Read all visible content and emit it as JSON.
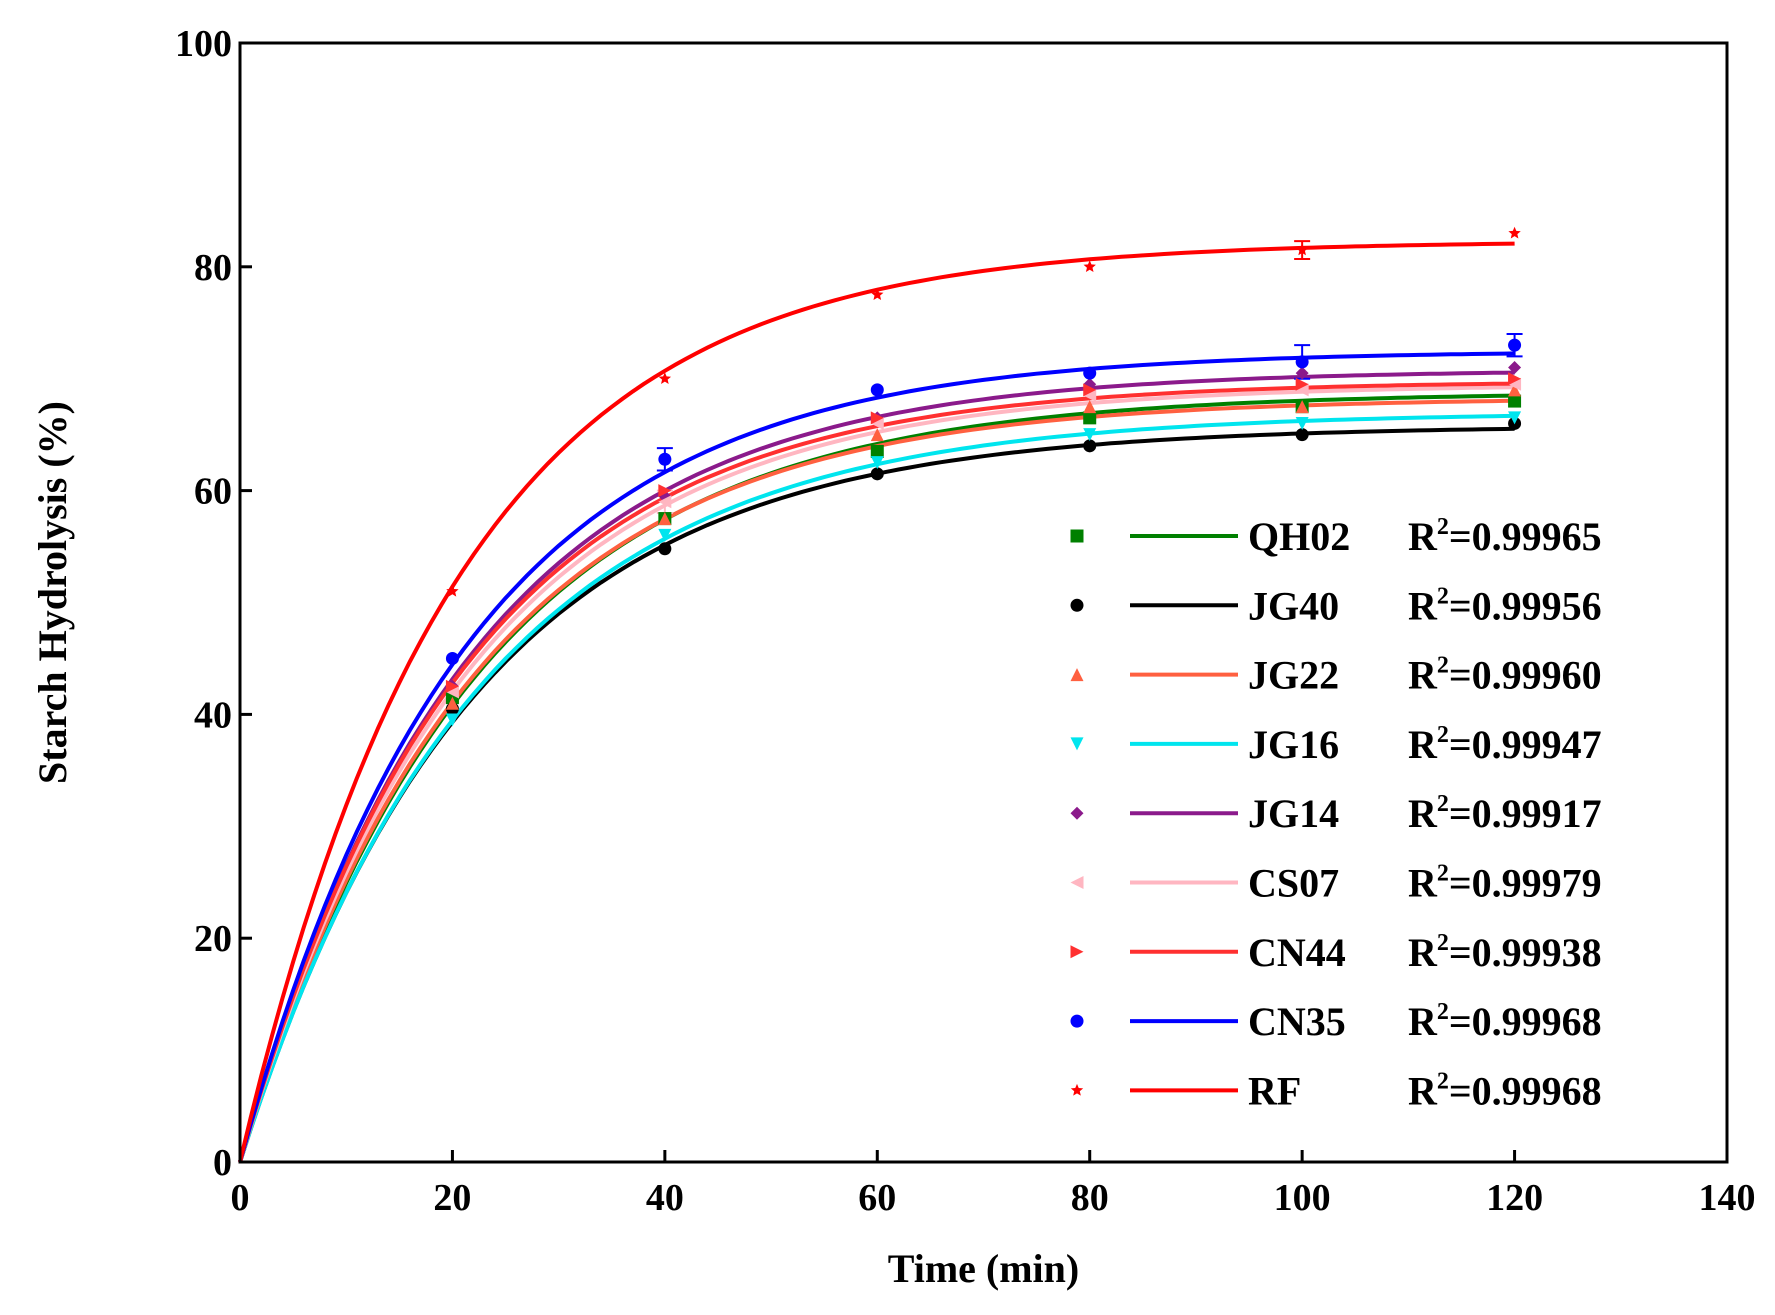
{
  "chart_data": {
    "type": "line",
    "title": "",
    "xlabel": "Time (min)",
    "ylabel": "Starch Hydrolysis (%)",
    "xlim": [
      0,
      140
    ],
    "ylim": [
      0,
      100
    ],
    "x_ticks": [
      0,
      20,
      40,
      60,
      80,
      100,
      120,
      140
    ],
    "y_ticks": [
      0,
      20,
      40,
      60,
      80,
      100
    ],
    "grid": false,
    "legend_position": "lower-right",
    "x": [
      0,
      20,
      40,
      60,
      80,
      100,
      120
    ],
    "series": [
      {
        "name": "QH02",
        "r2_label": "=0.99965",
        "color": "#008000",
        "marker": "square",
        "values": [
          0,
          41.5,
          57.5,
          63.5,
          66.5,
          67.5,
          68.0
        ],
        "fit_curve": {
          "plateau": 68.8,
          "k": 0.045
        }
      },
      {
        "name": "JG40",
        "r2_label": "=0.99956",
        "color": "#000000",
        "marker": "circle",
        "values": [
          0,
          40.5,
          54.8,
          61.5,
          64.0,
          65.0,
          66.0
        ],
        "fit_curve": {
          "plateau": 65.8,
          "k": 0.0455
        }
      },
      {
        "name": "JG22",
        "r2_label": "=0.99960",
        "color": "#ff6040",
        "marker": "triangle-up",
        "values": [
          0,
          41.0,
          57.5,
          65.0,
          67.5,
          67.5,
          69.0
        ],
        "fit_curve": {
          "plateau": 68.3,
          "k": 0.046
        }
      },
      {
        "name": "JG16",
        "r2_label": "=0.99947",
        "color": "#00e5ee",
        "marker": "triangle-down",
        "values": [
          0,
          39.5,
          56.0,
          62.5,
          65.0,
          66.0,
          66.5
        ],
        "fit_curve": {
          "plateau": 67.0,
          "k": 0.0445
        }
      },
      {
        "name": "JG14",
        "r2_label": "=0.99917",
        "color": "#8b1a8b",
        "marker": "diamond",
        "values": [
          0,
          42.5,
          59.5,
          66.5,
          69.5,
          70.5,
          71.0
        ],
        "fit_curve": {
          "plateau": 70.8,
          "k": 0.047
        }
      },
      {
        "name": "CS07",
        "r2_label": "=0.99979",
        "color": "#ffb6c1",
        "marker": "triangle-left",
        "values": [
          0,
          42.0,
          59.0,
          66.0,
          68.5,
          69.0,
          69.5
        ],
        "fit_curve": {
          "plateau": 69.5,
          "k": 0.0465
        }
      },
      {
        "name": "CN44",
        "r2_label": "=0.99938",
        "color": "#ff3030",
        "marker": "triangle-right",
        "values": [
          0,
          42.5,
          60.0,
          66.5,
          69.0,
          69.5,
          70.0
        ],
        "fit_curve": {
          "plateau": 69.8,
          "k": 0.0475
        }
      },
      {
        "name": "CN35",
        "r2_label": "=0.99968",
        "color": "#0000ff",
        "marker": "circle",
        "values": [
          0,
          45.0,
          62.8,
          69.0,
          70.5,
          71.5,
          73.0
        ],
        "fit_curve": {
          "plateau": 72.5,
          "k": 0.0475
        }
      },
      {
        "name": "RF",
        "r2_label": "=0.99968",
        "color": "#ff0000",
        "marker": "star",
        "values": [
          0,
          51.0,
          70.0,
          77.5,
          80.0,
          81.5,
          83.0
        ],
        "fit_curve": {
          "plateau": 82.3,
          "k": 0.049
        }
      }
    ],
    "error_bars": [
      {
        "series": "CN35",
        "x": 40,
        "err": 1.0
      },
      {
        "series": "CN35",
        "x": 100,
        "err": 1.5
      },
      {
        "series": "CN35",
        "x": 120,
        "err": 1.0
      },
      {
        "series": "RF",
        "x": 100,
        "err": 0.8
      },
      {
        "series": "CS07",
        "x": 40,
        "err": 1.0
      }
    ]
  }
}
